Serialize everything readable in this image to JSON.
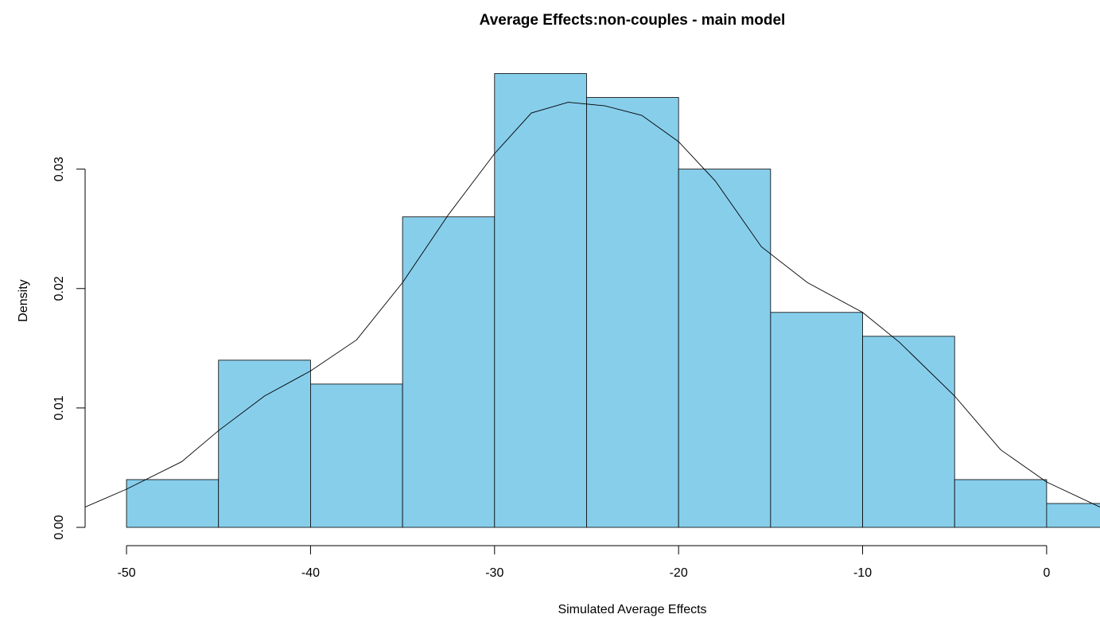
{
  "chart_data": {
    "type": "histogram",
    "title": "Average Effects:non-couples - main model",
    "x_label": "Simulated Average Effects",
    "y_label": "Density",
    "bins": [
      -50,
      -45,
      -40,
      -35,
      -30,
      -25,
      -20,
      -15,
      -10,
      -5,
      0,
      5
    ],
    "values": [
      0.004,
      0.014,
      0.012,
      0.026,
      0.038,
      0.036,
      0.03,
      0.018,
      0.016,
      0.004,
      0.002
    ],
    "color": "#87ceeb",
    "density": {
      "x": [
        -52.25,
        -50,
        -47,
        -45,
        -42.5,
        -40,
        -37.5,
        -35,
        -32.5,
        -30,
        -28,
        -26,
        -24,
        -22,
        -20,
        -18,
        -15.5,
        -13,
        -10,
        -8,
        -5,
        -2.5,
        0,
        2.9
      ],
      "y": [
        0.0017,
        0.0032,
        0.0055,
        0.0081,
        0.011,
        0.0131,
        0.0157,
        0.0205,
        0.0262,
        0.0313,
        0.0347,
        0.0356,
        0.0353,
        0.0345,
        0.0323,
        0.029,
        0.0235,
        0.0205,
        0.018,
        0.0155,
        0.011,
        0.0065,
        0.0038,
        0.0017
      ]
    },
    "xlim": [
      -52.25,
      2.9
    ],
    "ylim": [
      -0.00153,
      0.0395
    ],
    "xticks": [
      -50,
      -40,
      -30,
      -20,
      -10,
      0
    ],
    "yticks": [
      {
        "value": 0,
        "label": "0.00"
      },
      {
        "value": 0.01,
        "label": "0.01"
      },
      {
        "value": 0.02,
        "label": "0.02"
      },
      {
        "value": 0.03,
        "label": "0.03"
      }
    ]
  }
}
